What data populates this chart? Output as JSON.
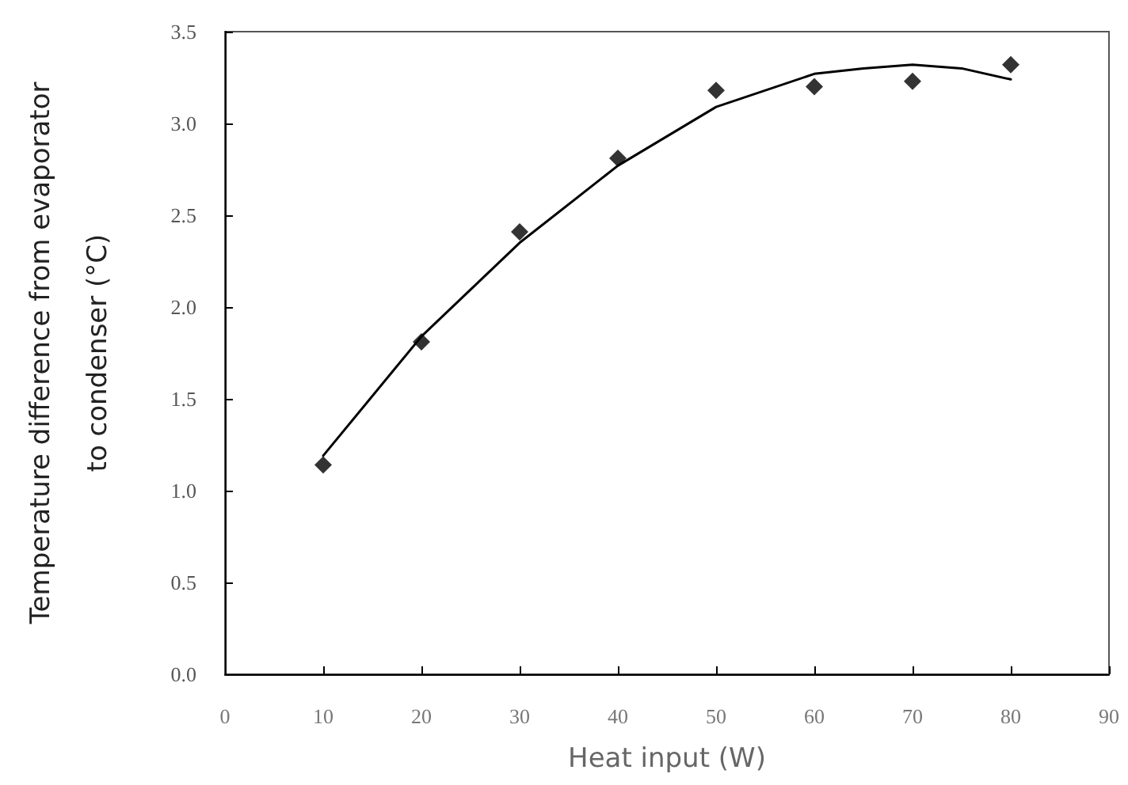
{
  "chart_data": {
    "type": "scatter",
    "xlabel": "Heat input (W)",
    "ylabel": "Temperature difference from evaporator\nto condenser (°C)",
    "x": [
      10,
      20,
      30,
      40,
      50,
      60,
      70,
      80
    ],
    "series": [
      {
        "color": "#000000",
        "marker": "diamond",
        "values": [
          1.14,
          1.81,
          2.41,
          2.81,
          3.18,
          3.2,
          3.23,
          3.32
        ]
      },
      {
        "type": "line",
        "color": "#000000",
        "marker": "none",
        "line_style": "solid",
        "x": [
          10,
          20,
          30,
          40,
          50,
          60,
          65,
          70,
          75,
          80
        ],
        "values": [
          1.19,
          1.84,
          2.35,
          2.77,
          3.09,
          3.27,
          3.3,
          3.32,
          3.3,
          3.24
        ]
      }
    ],
    "xlim": [
      0,
      90
    ],
    "xticks": [
      0,
      10,
      20,
      30,
      40,
      50,
      60,
      70,
      80,
      90
    ],
    "ylim": [
      0,
      3.5
    ],
    "yticks": [
      {
        "value": 0,
        "label": "0.0"
      },
      0.5,
      {
        "value": 1,
        "label": "1.0"
      },
      1.5,
      {
        "value": 2,
        "label": "2.0"
      },
      2.5,
      {
        "value": 3,
        "label": "3.0"
      },
      3.5
    ],
    "grid": false
  }
}
